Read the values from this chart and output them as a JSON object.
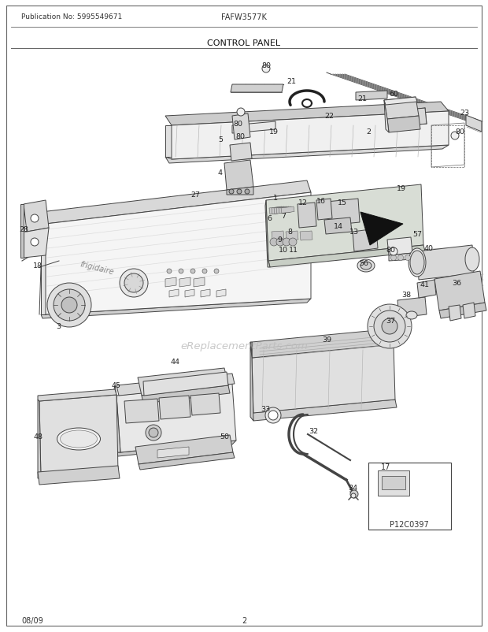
{
  "pub_no": "Publication No: 5995549671",
  "model": "FAFW3577K",
  "title": "CONTROL PANEL",
  "footer_left": "08/09",
  "footer_center": "2",
  "bg_color": "#ffffff",
  "fig_width": 6.2,
  "fig_height": 8.03,
  "dpi": 100,
  "watermark": "eReplacementParts.com"
}
